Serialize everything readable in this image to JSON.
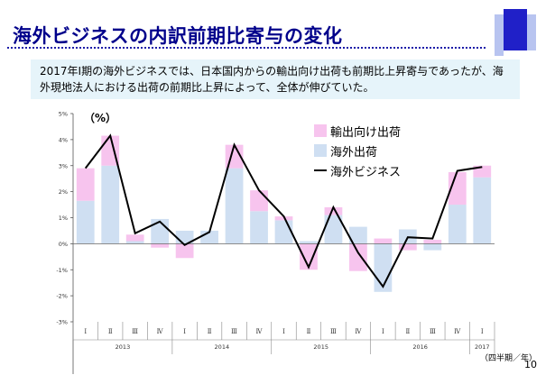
{
  "header": {
    "title": "海外ビジネスの内訳前期比寄与の変化"
  },
  "summary_text": "2017年Ⅰ期の海外ビジネスでは、日本国内からの輸出向け出荷も前期比上昇寄与であったが、海外現地法人における出荷の前期比上昇によって、全体が伸びていた。",
  "page_number": "10",
  "colors": {
    "title": "#00008b",
    "export_bar": "#f7c4ee",
    "overseas_bar": "#cfdff2",
    "line": "#000000",
    "summary_bg": "#e6f4fa"
  },
  "chart_data": {
    "type": "bar",
    "stacked": true,
    "unit_label": "（%）",
    "x_unit_label": "（四半期／年）",
    "quarters": [
      "Ⅰ",
      "Ⅱ",
      "Ⅲ",
      "Ⅳ",
      "Ⅰ",
      "Ⅱ",
      "Ⅲ",
      "Ⅳ",
      "Ⅰ",
      "Ⅱ",
      "Ⅲ",
      "Ⅳ",
      "Ⅰ",
      "Ⅱ",
      "Ⅲ",
      "Ⅳ",
      "Ⅰ"
    ],
    "years": [
      {
        "label": "2013",
        "count": 4
      },
      {
        "label": "2014",
        "count": 4
      },
      {
        "label": "2015",
        "count": 4
      },
      {
        "label": "2016",
        "count": 4
      },
      {
        "label": "2017",
        "count": 1
      }
    ],
    "ylim": [
      -3,
      5
    ],
    "yticks": [
      "-3%",
      "-2%",
      "-1%",
      "0%",
      "1%",
      "2%",
      "3%",
      "4%",
      "5%"
    ],
    "series": [
      {
        "name": "輸出向け出荷",
        "kind": "bar",
        "values": [
          1.25,
          1.15,
          0.25,
          -0.15,
          -0.55,
          0.0,
          0.9,
          0.8,
          0.15,
          -1.0,
          0.3,
          -1.05,
          0.2,
          -0.25,
          0.15,
          1.25,
          0.45
        ]
      },
      {
        "name": "海外出荷",
        "kind": "bar",
        "values": [
          1.65,
          3.0,
          0.1,
          0.95,
          0.5,
          0.5,
          2.9,
          1.25,
          0.9,
          0.1,
          1.1,
          0.65,
          -1.85,
          0.55,
          -0.25,
          1.5,
          2.55
        ]
      },
      {
        "name": "海外ビジネス",
        "kind": "line",
        "values": [
          2.9,
          4.15,
          0.4,
          0.85,
          -0.05,
          0.45,
          3.8,
          2.05,
          1.05,
          -0.9,
          1.4,
          -0.35,
          -1.65,
          0.25,
          0.2,
          2.8,
          2.95
        ]
      }
    ]
  }
}
